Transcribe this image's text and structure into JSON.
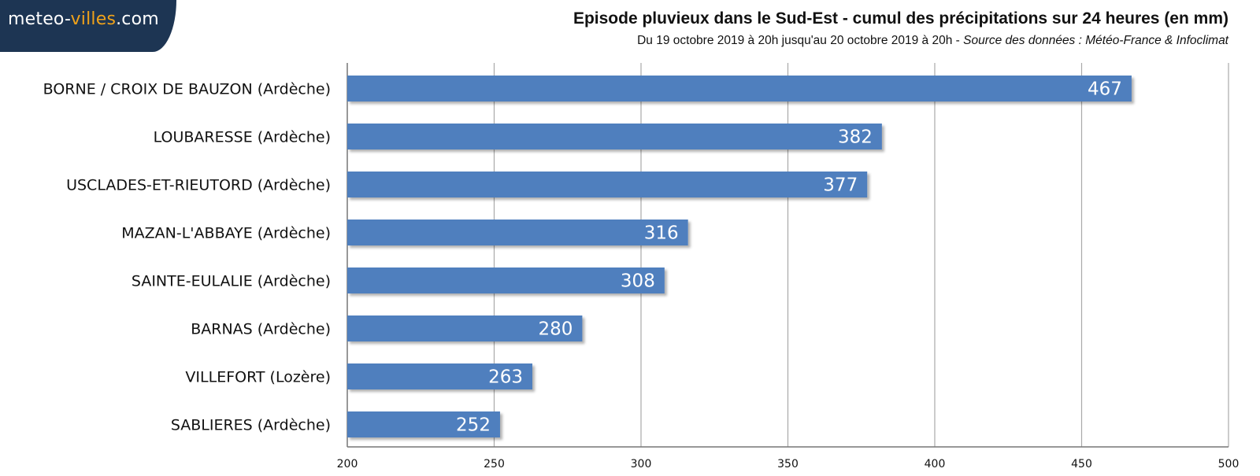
{
  "logo": {
    "part1": "meteo-",
    "part2": "villes",
    "part3": ".com"
  },
  "header": {
    "title": "Episode pluvieux dans le Sud-Est - cumul des précipitations sur 24 heures (en mm)",
    "period": "Du 19 octobre 2019 à 20h jusqu'au 20 octobre 2019 à 20h",
    "separator": " - ",
    "source": "Source des données : Météo-France & Infoclimat"
  },
  "colors": {
    "bar": "#4f7fbe",
    "grid": "#a9a9a9",
    "axis": "#777777",
    "logo_bg": "#1d3553",
    "logo_accent": "#f0a21a"
  },
  "chart_data": {
    "type": "bar",
    "orientation": "horizontal",
    "categories": [
      "BORNE / CROIX DE BAUZON (Ardèche)",
      "LOUBARESSE (Ardèche)",
      "USCLADES-ET-RIEUTORD (Ardèche)",
      "MAZAN-L'ABBAYE (Ardèche)",
      "SAINTE-EULALIE (Ardèche)",
      "BARNAS (Ardèche)",
      "VILLEFORT (Lozère)",
      "SABLIERES (Ardèche)"
    ],
    "values": [
      467,
      382,
      377,
      316,
      308,
      280,
      263,
      252
    ],
    "xlim": [
      200,
      500
    ],
    "xticks": [
      200,
      250,
      300,
      350,
      400,
      450,
      500
    ],
    "grid": "vertical",
    "data_labels": "inside-end",
    "legend": "none"
  }
}
